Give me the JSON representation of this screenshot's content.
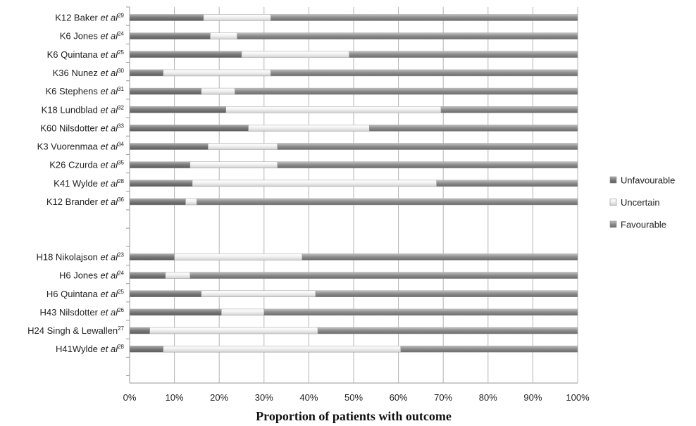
{
  "chart_data": {
    "type": "bar",
    "orientation": "horizontal",
    "stacked": true,
    "percent_stacked": true,
    "xlabel": "Proportion of patients with outcome",
    "xlim": [
      0,
      100
    ],
    "x_ticks": [
      "0%",
      "10%",
      "20%",
      "30%",
      "40%",
      "50%",
      "60%",
      "70%",
      "80%",
      "90%",
      "100%"
    ],
    "grid": true,
    "legend_position": "right",
    "colors": {
      "Unfavourable": "#8a8a8a",
      "Uncertain": "#f2f2f2",
      "Favourable": "#9e9e9e"
    },
    "categories": [
      {
        "prefix": "K12 Baker ",
        "etal": true,
        "ref": "29"
      },
      {
        "prefix": "K6 Jones ",
        "etal": true,
        "ref": "24"
      },
      {
        "prefix": "K6 Quintana ",
        "etal": true,
        "ref": "25"
      },
      {
        "prefix": "K36 Nunez ",
        "etal": true,
        "ref": "30"
      },
      {
        "prefix": "K6 Stephens ",
        "etal": true,
        "ref": "31"
      },
      {
        "prefix": "K18 Lundblad ",
        "etal": true,
        "ref": "32"
      },
      {
        "prefix": "K60 Nilsdotter ",
        "etal": true,
        "ref": "33"
      },
      {
        "prefix": "K3 Vuorenmaa ",
        "etal": true,
        "ref": "34"
      },
      {
        "prefix": "K26 Czurda ",
        "etal": true,
        "ref": "35"
      },
      {
        "prefix": "K41 Wylde ",
        "etal": true,
        "ref": "28"
      },
      {
        "prefix": "K12 Brander ",
        "etal": true,
        "ref": "36"
      },
      {
        "prefix": "",
        "etal": false,
        "ref": ""
      },
      {
        "prefix": "",
        "etal": false,
        "ref": ""
      },
      {
        "prefix": "H18 Nikolajson ",
        "etal": true,
        "ref": "23"
      },
      {
        "prefix": "H6 Jones ",
        "etal": true,
        "ref": "24"
      },
      {
        "prefix": "H6 Quintana ",
        "etal": true,
        "ref": "25"
      },
      {
        "prefix": "H43 Nilsdotter ",
        "etal": true,
        "ref": "26"
      },
      {
        "prefix": "H24 Singh & Lewallen",
        "etal": false,
        "ref": "27"
      },
      {
        "prefix": "H41Wylde ",
        "etal": true,
        "ref": "28"
      }
    ],
    "series": [
      {
        "name": "Unfavourable",
        "values": [
          16.5,
          18,
          25,
          7.5,
          16,
          21.5,
          26.5,
          17.5,
          13.5,
          14,
          12.5,
          null,
          null,
          10,
          8,
          16,
          20.5,
          4.5,
          7.5
        ]
      },
      {
        "name": "Uncertain",
        "values": [
          15,
          6,
          24,
          24,
          7.5,
          48,
          27,
          15.5,
          19.5,
          54.5,
          2.5,
          null,
          null,
          28.5,
          5.5,
          25.5,
          9.5,
          37.5,
          53
        ]
      },
      {
        "name": "Favourable",
        "values": [
          68.5,
          76,
          51,
          68.5,
          76.5,
          30.5,
          46.5,
          67,
          67,
          31.5,
          85,
          null,
          null,
          61.5,
          86.5,
          58.5,
          70,
          58,
          39.5
        ]
      }
    ]
  },
  "etal_text": "et al"
}
